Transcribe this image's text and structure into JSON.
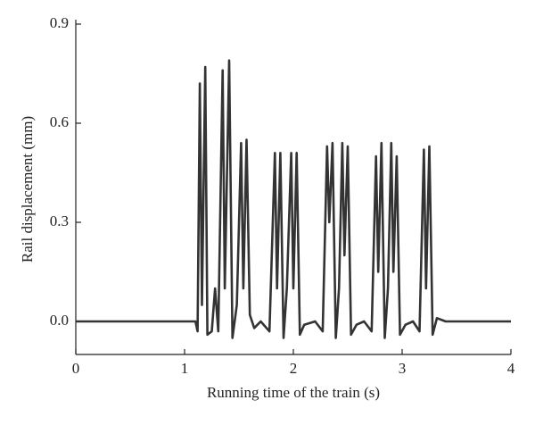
{
  "chart_data": {
    "type": "line",
    "xlabel": "Running time of the train (s)",
    "ylabel": "Rail displacement (mm)",
    "xlim": [
      0,
      4
    ],
    "ylim": [
      -0.1,
      0.9
    ],
    "xticks": [
      0,
      1,
      2,
      3,
      4
    ],
    "yticks": [
      {
        "value": 0,
        "label": "0.0"
      },
      0.3,
      0.6,
      0.9
    ],
    "series": [
      {
        "color": "#333333",
        "x": [
          0,
          1.1,
          1.12,
          1.14,
          1.16,
          1.19,
          1.21,
          1.25,
          1.28,
          1.31,
          1.35,
          1.37,
          1.41,
          1.44,
          1.48,
          1.52,
          1.54,
          1.57,
          1.6,
          1.64,
          1.7,
          1.78,
          1.83,
          1.85,
          1.88,
          1.91,
          1.94,
          1.98,
          2.0,
          2.03,
          2.06,
          2.1,
          2.2,
          2.27,
          2.31,
          2.33,
          2.36,
          2.39,
          2.42,
          2.45,
          2.47,
          2.5,
          2.53,
          2.58,
          2.65,
          2.72,
          2.76,
          2.78,
          2.81,
          2.84,
          2.87,
          2.9,
          2.92,
          2.95,
          2.98,
          3.03,
          3.1,
          3.16,
          3.2,
          3.22,
          3.25,
          3.28,
          3.32,
          3.4,
          4
        ],
        "values": [
          0,
          0,
          -0.03,
          0.72,
          0.05,
          0.77,
          -0.04,
          -0.03,
          0.1,
          -0.03,
          0.76,
          0.1,
          0.79,
          -0.05,
          0.05,
          0.54,
          0.1,
          0.55,
          0.02,
          -0.02,
          0,
          -0.03,
          0.51,
          0.1,
          0.51,
          -0.05,
          0.1,
          0.51,
          0.1,
          0.51,
          -0.04,
          -0.01,
          0,
          -0.03,
          0.53,
          0.3,
          0.54,
          -0.05,
          0.1,
          0.54,
          0.2,
          0.53,
          -0.04,
          -0.01,
          0,
          -0.03,
          0.5,
          0.15,
          0.54,
          -0.05,
          0.1,
          0.54,
          0.15,
          0.5,
          -0.04,
          -0.01,
          0,
          -0.03,
          0.52,
          0.1,
          0.53,
          -0.04,
          0.01,
          0,
          0
        ]
      }
    ]
  }
}
